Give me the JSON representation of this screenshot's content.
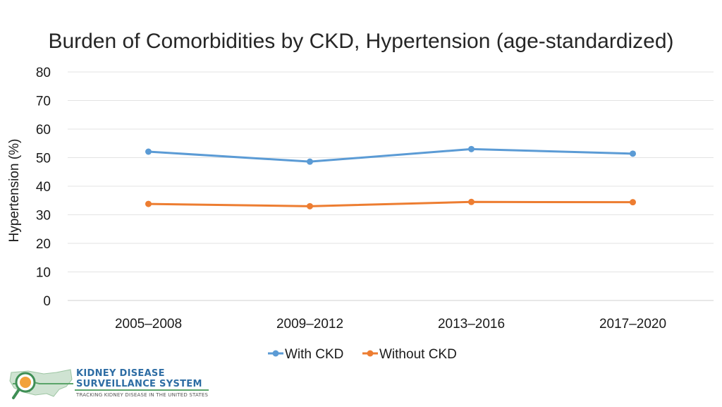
{
  "chart_data": {
    "type": "line",
    "title": "Burden of Comorbidities by CKD, Hypertension (age-standardized)",
    "xlabel": "",
    "ylabel": "Hypertension (%)",
    "categories": [
      "2005–2008",
      "2009–2012",
      "2013–2016",
      "2017–2020"
    ],
    "ylim": [
      0,
      80
    ],
    "yticks": [
      0,
      10,
      20,
      30,
      40,
      50,
      60,
      70,
      80
    ],
    "grid": true,
    "legend_position": "bottom",
    "series": [
      {
        "name": "With CKD",
        "color": "#5b9bd5",
        "values": [
          52.1,
          48.6,
          53.0,
          51.4
        ]
      },
      {
        "name": "Without CKD",
        "color": "#ed7d31",
        "values": [
          33.8,
          33.0,
          34.5,
          34.4
        ]
      }
    ]
  },
  "logo": {
    "line1": "KIDNEY DISEASE",
    "line2": "SURVEILLANCE SYSTEM",
    "tagline": "TRACKING KIDNEY DISEASE IN THE UNITED STATES"
  }
}
